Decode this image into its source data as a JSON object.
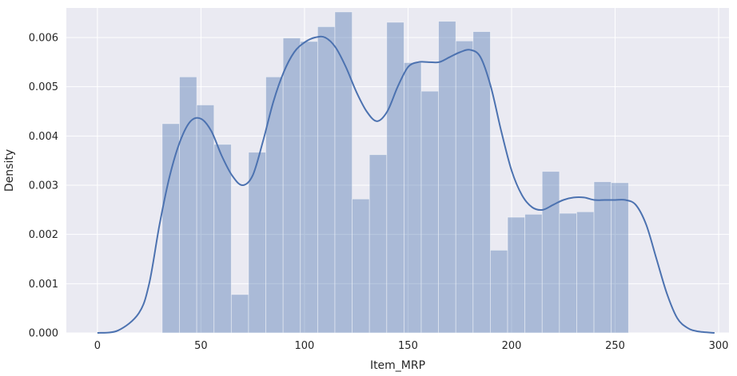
{
  "chart_data": {
    "type": "bar",
    "subtype": "histogram-with-kde",
    "title": "",
    "xlabel": "Item_MRP",
    "ylabel": "Density",
    "xlim": [
      -15,
      305
    ],
    "ylim": [
      0,
      0.0066
    ],
    "grid": true,
    "legend": "none",
    "colors": {
      "background": "#eaeaf2",
      "grid": "#ffffff",
      "bar_fill": "#4c72b0",
      "bar_opacity": 0.4,
      "kde_line": "#4c72b0"
    },
    "xticks": [
      0,
      50,
      100,
      150,
      200,
      250,
      300
    ],
    "xtick_labels": [
      "0",
      "50",
      "100",
      "150",
      "200",
      "250",
      "300"
    ],
    "yticks": [
      0,
      0.001,
      0.002,
      0.003,
      0.004,
      0.005,
      0.006
    ],
    "ytick_labels": [
      "0.000",
      "0.001",
      "0.002",
      "0.003",
      "0.004",
      "0.005",
      "0.006"
    ],
    "bins": {
      "start": 31.29,
      "width": 8.34,
      "heights": [
        0.00425,
        0.0052,
        0.00463,
        0.00383,
        0.00078,
        0.00367,
        0.0052,
        0.00599,
        0.00592,
        0.00622,
        0.00652,
        0.00272,
        0.00362,
        0.00631,
        0.00549,
        0.00491,
        0.00633,
        0.00593,
        0.00612,
        0.00168,
        0.00235,
        0.00241,
        0.00328,
        0.00243,
        0.00246,
        0.00307,
        0.00305
      ]
    },
    "kde": {
      "x": [
        0,
        10,
        20,
        25,
        30,
        35,
        40,
        45,
        50,
        55,
        60,
        65,
        70,
        75,
        80,
        85,
        90,
        95,
        100,
        105,
        110,
        115,
        120,
        125,
        130,
        135,
        140,
        145,
        150,
        155,
        160,
        165,
        170,
        175,
        180,
        185,
        190,
        195,
        200,
        205,
        210,
        215,
        220,
        225,
        230,
        235,
        240,
        245,
        250,
        255,
        260,
        265,
        270,
        275,
        280,
        285,
        290,
        298
      ],
      "y": [
        0.0,
        5e-05,
        0.0004,
        0.001,
        0.0022,
        0.0032,
        0.0039,
        0.0043,
        0.00435,
        0.0041,
        0.0036,
        0.0032,
        0.003,
        0.0032,
        0.0039,
        0.0047,
        0.0053,
        0.0057,
        0.0059,
        0.006,
        0.006,
        0.0058,
        0.0054,
        0.0049,
        0.0045,
        0.0043,
        0.0045,
        0.005,
        0.0054,
        0.0055,
        0.0055,
        0.0055,
        0.0056,
        0.0057,
        0.00575,
        0.0056,
        0.005,
        0.0041,
        0.0033,
        0.0028,
        0.00255,
        0.0025,
        0.0026,
        0.0027,
        0.00275,
        0.00275,
        0.0027,
        0.0027,
        0.0027,
        0.0027,
        0.0026,
        0.0022,
        0.0015,
        0.0008,
        0.0003,
        0.0001,
        3e-05,
        0.0
      ]
    }
  }
}
